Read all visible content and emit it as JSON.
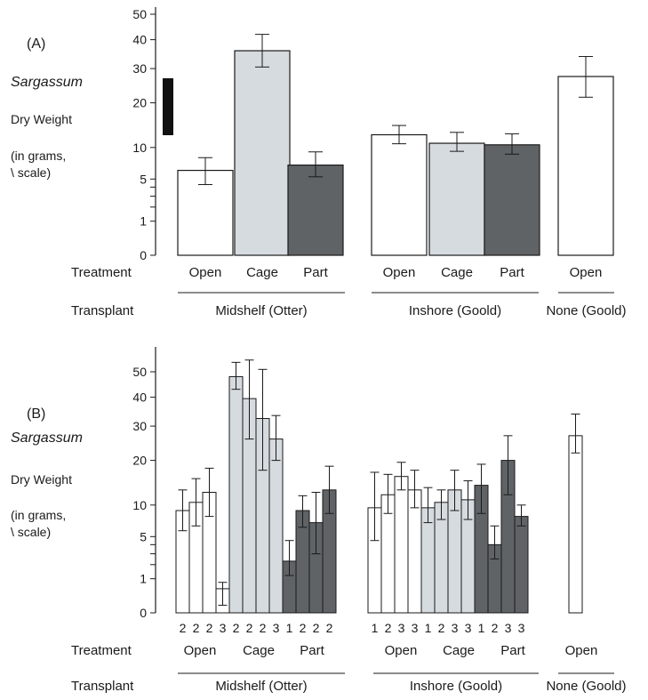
{
  "colors": {
    "open": "#ffffff",
    "cage": "#d6dbe0",
    "part": "#5f6366",
    "ink": "#1a1a1a",
    "scale_bar": "#111111"
  },
  "chart_data": [
    {
      "type": "bar",
      "panel_label": "(A)",
      "ylabel_lines": [
        "Sargassum",
        "Dry Weight",
        "(in grams,",
        "\\ scale)"
      ],
      "y_scale": "square-root",
      "y_ticks": [
        "0",
        "1",
        "5",
        "10",
        "20",
        "30",
        "40",
        "50"
      ],
      "y_ticks_minor": [
        2,
        3,
        4
      ],
      "ylim": [
        0,
        50
      ],
      "row_labels": {
        "treatment": "Treatment",
        "transplant": "Transplant"
      },
      "bars": [
        {
          "treatment": "Open",
          "type": "open",
          "value": 6.2,
          "err_low": 4.3,
          "err_high": 8.2
        },
        {
          "treatment": "Cage",
          "type": "cage",
          "value": 36,
          "err_low": 30.5,
          "err_high": 42
        },
        {
          "treatment": "Part",
          "type": "part",
          "value": 7.0,
          "err_low": 5.3,
          "err_high": 9.2
        },
        {
          "treatment": "Open",
          "type": "open",
          "value": 12.5,
          "err_low": 10.7,
          "err_high": 14.5
        },
        {
          "treatment": "Cage",
          "type": "cage",
          "value": 10.8,
          "err_low": 9.3,
          "err_high": 13.0
        },
        {
          "treatment": "Part",
          "type": "part",
          "value": 10.5,
          "err_low": 8.8,
          "err_high": 12.7
        },
        {
          "treatment": "Open",
          "type": "open",
          "value": 27.5,
          "err_low": 21.5,
          "err_high": 34.0
        }
      ],
      "groups": [
        {
          "label": "Midshelf (Otter)"
        },
        {
          "label": "Inshore (Goold)"
        },
        {
          "label": "None (Goold)"
        }
      ],
      "scale_bar": true
    },
    {
      "type": "bar",
      "panel_label": "(B)",
      "ylabel_lines": [
        "Sargassum",
        "Dry Weight",
        "(in grams,",
        "\\ scale)"
      ],
      "y_scale": "square-root",
      "y_ticks": [
        "0",
        "1",
        "5",
        "10",
        "20",
        "30",
        "40",
        "50"
      ],
      "y_ticks_minor": [
        2,
        3,
        4
      ],
      "ylim": [
        0,
        50
      ],
      "row_labels": {
        "treatment": "Treatment",
        "transplant": "Transplant"
      },
      "treatment_labels": [
        {
          "label": "Open"
        },
        {
          "label": "Cage"
        },
        {
          "label": "Part"
        },
        {
          "label": "Open"
        },
        {
          "label": "Cage"
        },
        {
          "label": "Part"
        },
        {
          "label": "Open"
        }
      ],
      "bars": [
        {
          "n": "2",
          "type": "open",
          "value": 9.0,
          "err_low": 5.8,
          "err_high": 13.0
        },
        {
          "n": "2",
          "type": "open",
          "value": 10.5,
          "err_low": 6.5,
          "err_high": 15.5
        },
        {
          "n": "2",
          "type": "open",
          "value": 12.5,
          "err_low": 8.0,
          "err_high": 18.0
        },
        {
          "n": "3",
          "type": "open",
          "value": 0.5,
          "err_low": 0.05,
          "err_high": 0.8
        },
        {
          "n": "2",
          "type": "cage",
          "value": 48.0,
          "err_low": 43.0,
          "err_high": 54.0
        },
        {
          "n": "2",
          "type": "cage",
          "value": 39.5,
          "err_low": 26.0,
          "err_high": 55.0
        },
        {
          "n": "2",
          "type": "cage",
          "value": 32.5,
          "err_low": 17.5,
          "err_high": 51.0
        },
        {
          "n": "3",
          "type": "cage",
          "value": 26.0,
          "err_low": 20.0,
          "err_high": 33.5
        },
        {
          "n": "1",
          "type": "part",
          "value": 2.3,
          "err_low": 1.2,
          "err_high": 4.5
        },
        {
          "n": "2",
          "type": "part",
          "value": 9.0,
          "err_low": 6.3,
          "err_high": 11.8
        },
        {
          "n": "2",
          "type": "part",
          "value": 7.0,
          "err_low": 3.0,
          "err_high": 12.5
        },
        {
          "n": "2",
          "type": "part",
          "value": 13.0,
          "err_low": 8.5,
          "err_high": 18.5
        },
        {
          "n": "1",
          "type": "open",
          "value": 9.5,
          "err_low": 4.5,
          "err_high": 17.0
        },
        {
          "n": "2",
          "type": "open",
          "value": 12.0,
          "err_low": 8.5,
          "err_high": 16.5
        },
        {
          "n": "3",
          "type": "open",
          "value": 16.0,
          "err_low": 13.0,
          "err_high": 19.5
        },
        {
          "n": "3",
          "type": "open",
          "value": 13.0,
          "err_low": 9.5,
          "err_high": 17.5
        },
        {
          "n": "1",
          "type": "cage",
          "value": 9.5,
          "err_low": 7.0,
          "err_high": 13.5
        },
        {
          "n": "2",
          "type": "cage",
          "value": 10.5,
          "err_low": 7.5,
          "err_high": 13.0
        },
        {
          "n": "3",
          "type": "cage",
          "value": 13.0,
          "err_low": 9.0,
          "err_high": 17.5
        },
        {
          "n": "3",
          "type": "cage",
          "value": 11.0,
          "err_low": 7.5,
          "err_high": 15.0
        },
        {
          "n": "1",
          "type": "part",
          "value": 14.0,
          "err_low": 8.5,
          "err_high": 19.0
        },
        {
          "n": "2",
          "type": "part",
          "value": 4.0,
          "err_low": 2.5,
          "err_high": 6.5
        },
        {
          "n": "3",
          "type": "part",
          "value": 20.0,
          "err_low": 12.0,
          "err_high": 27.0
        },
        {
          "n": "3",
          "type": "part",
          "value": 8.0,
          "err_low": 6.5,
          "err_high": 10.0
        },
        {
          "n": "",
          "type": "open",
          "value": 27.0,
          "err_low": 22.0,
          "err_high": 34.0
        }
      ],
      "groups": [
        {
          "label": "Midshelf (Otter)"
        },
        {
          "label": "Inshore (Goold)"
        },
        {
          "label": "None (Goold)"
        }
      ]
    }
  ]
}
